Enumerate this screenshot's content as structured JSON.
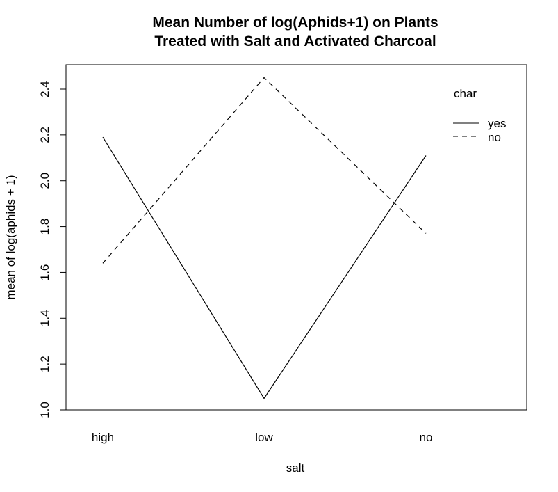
{
  "chart_data": {
    "type": "line",
    "title_line1": "Mean Number of log(Aphids+1) on Plants",
    "title_line2": "Treated with Salt and Activated Charcoal",
    "xlabel": "salt",
    "ylabel": "mean of  log(aphids + 1)",
    "categories": [
      "high",
      "low",
      "no"
    ],
    "ylim": [
      1.0,
      2.45
    ],
    "yticks": [
      "1.0",
      "1.2",
      "1.4",
      "1.6",
      "1.8",
      "2.0",
      "2.2",
      "2.4"
    ],
    "legend_title": "char",
    "legend_position": "top-right",
    "grid": false,
    "series": [
      {
        "name": "yes",
        "style": "solid",
        "values": [
          2.19,
          1.05,
          2.11
        ]
      },
      {
        "name": "no",
        "style": "dashed",
        "values": [
          1.64,
          2.45,
          1.77
        ]
      }
    ]
  }
}
